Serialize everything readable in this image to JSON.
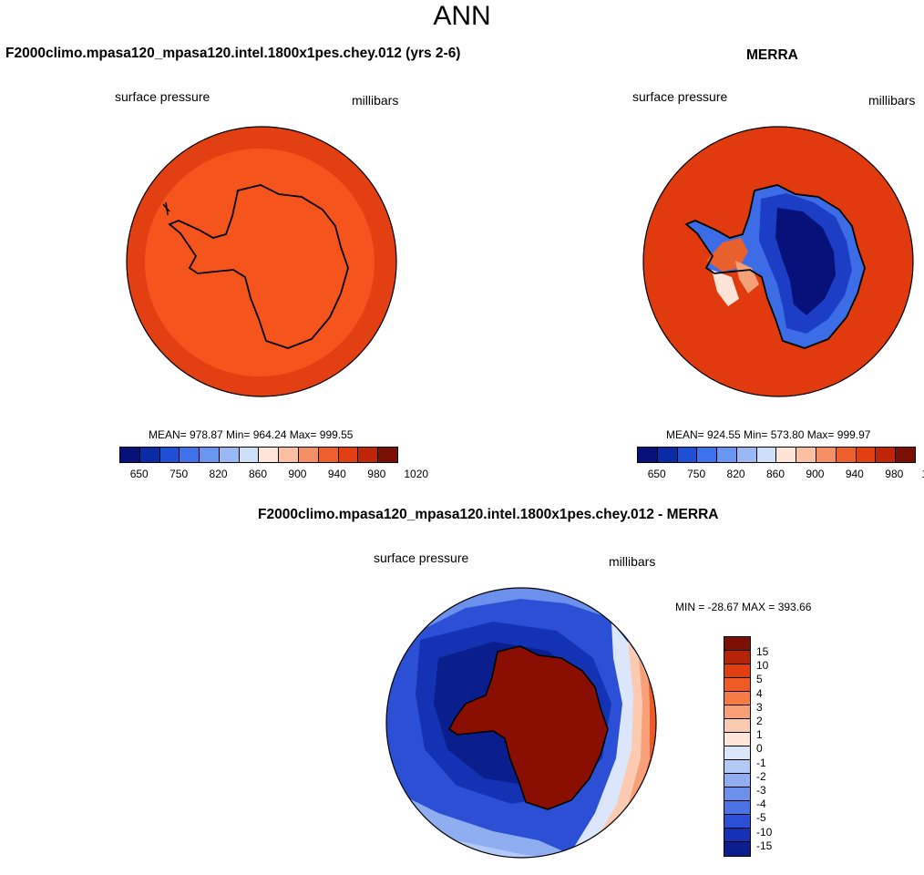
{
  "title": "ANN",
  "panels": {
    "model": {
      "title": "F2000climo.mpasa120_mpasa120.intel.1800x1pes.chey.012 (yrs 2-6)",
      "variable": "surface pressure",
      "units": "millibars",
      "stats": "MEAN= 978.87  Min= 964.24  Max= 999.55",
      "mean": 978.87,
      "min": 964.24,
      "max": 999.55
    },
    "obs": {
      "title": "MERRA",
      "variable": "surface pressure",
      "units": "millibars",
      "stats": "MEAN= 924.55  Min= 573.80  Max= 999.97",
      "mean": 924.55,
      "min": 573.8,
      "max": 999.97
    },
    "diff": {
      "title": "F2000climo.mpasa120_mpasa120.intel.1800x1pes.chey.012 - MERRA",
      "variable": "surface pressure",
      "units": "millibars",
      "stats": "MIN = -28.67 MAX = 393.66",
      "min": -28.67,
      "max": 393.66
    }
  },
  "colorbar_abs": {
    "colors": [
      "#08107a",
      "#0a2ba6",
      "#1e4fd4",
      "#3f73eb",
      "#6996f0",
      "#9ab8f4",
      "#cde0fa",
      "#fde4d6",
      "#fbbfa2",
      "#f59066",
      "#ee5f2e",
      "#e23f12",
      "#c02508",
      "#7d1004"
    ],
    "tick_labels": [
      "650",
      "750",
      "820",
      "860",
      "900",
      "940",
      "980",
      "1020"
    ]
  },
  "colorbar_diff": {
    "colors": [
      "#7d1004",
      "#b62408",
      "#e03d10",
      "#f05a24",
      "#f57a44",
      "#f8a07a",
      "#fbcab0",
      "#fde6d8",
      "#dbe6fb",
      "#b3c9f6",
      "#8eaef1",
      "#6b91ec",
      "#4b73e6",
      "#2b50d6",
      "#1433b4",
      "#0a1e8e"
    ],
    "tick_labels": [
      "15",
      "10",
      "5",
      "4",
      "3",
      "2",
      "1",
      "0",
      "-1",
      "-2",
      "-3",
      "-4",
      "-5",
      "-10",
      "-15"
    ]
  },
  "map_colors": {
    "model_outer": "#e23f12",
    "model_inner": "#f5541c",
    "obs_ocean": "#e03a0e",
    "obs_low": "#08107a",
    "diff_high": "#8b0e02"
  }
}
